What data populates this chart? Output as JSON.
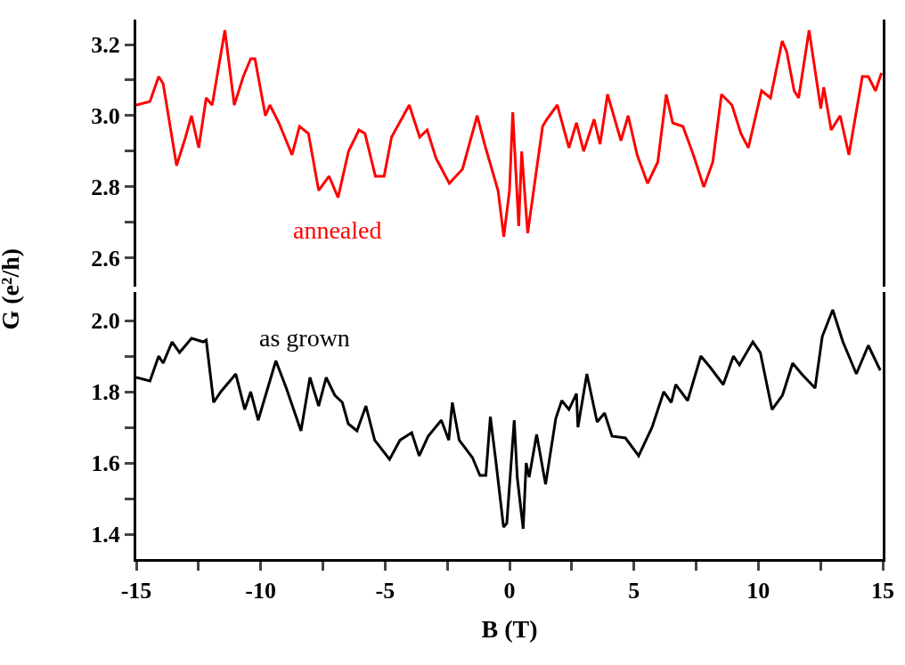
{
  "chart_data": [
    {
      "type": "line",
      "ylabel": "G (e²/h)",
      "xlim": [
        -15,
        15
      ],
      "ylim": [
        2.52,
        3.27
      ],
      "tick_labels": "y",
      "marker": "none",
      "line_style": "solid",
      "yticks": [
        {
          "value": 2.6,
          "label": "2.6"
        },
        {
          "value": 2.7,
          "label": null
        },
        {
          "value": 2.8,
          "label": "2.8"
        },
        {
          "value": 2.9,
          "label": null
        },
        {
          "value": 3.0,
          "label": "3.0"
        },
        {
          "value": 3.1,
          "label": null
        },
        {
          "value": 3.2,
          "label": "3.2"
        }
      ],
      "series": [
        {
          "name": "annealed",
          "color": "#ff0000",
          "x": [
            -15,
            -14.45,
            -14.1,
            -13.92,
            -13.38,
            -13.02,
            -12.78,
            -12.49,
            -12.19,
            -11.95,
            -11.44,
            -11.06,
            -10.7,
            -10.4,
            -10.23,
            -9.81,
            -9.63,
            -9.27,
            -8.74,
            -8.44,
            -8.08,
            -7.67,
            -7.25,
            -6.89,
            -6.47,
            -6.05,
            -5.81,
            -5.39,
            -5.04,
            -4.74,
            -4.03,
            -3.61,
            -3.31,
            -2.95,
            -2.42,
            -1.89,
            -1.3,
            -1.0,
            -0.46,
            -0.23,
            0.0,
            0.13,
            0.37,
            0.49,
            0.73,
            1.09,
            1.33,
            1.5,
            1.92,
            2.39,
            2.69,
            2.98,
            3.4,
            3.64,
            3.94,
            4.48,
            4.77,
            5.13,
            5.55,
            5.96,
            6.3,
            6.56,
            6.97,
            7.39,
            7.81,
            8.17,
            8.52,
            8.94,
            9.3,
            9.6,
            10.13,
            10.49,
            10.96,
            11.14,
            11.44,
            11.62,
            12.04,
            12.51,
            12.63,
            12.93,
            13.29,
            13.64,
            14.18,
            14.42,
            14.71,
            14.95
          ],
          "values": [
            3.03,
            3.04,
            3.11,
            3.09,
            2.86,
            2.94,
            3.0,
            2.91,
            3.05,
            3.03,
            3.24,
            3.03,
            3.11,
            3.16,
            3.16,
            3.0,
            3.03,
            2.98,
            2.89,
            2.97,
            2.95,
            2.79,
            2.83,
            2.77,
            2.9,
            2.96,
            2.95,
            2.83,
            2.83,
            2.94,
            3.03,
            2.94,
            2.96,
            2.88,
            2.81,
            2.85,
            3.0,
            2.92,
            2.79,
            2.66,
            2.79,
            3.01,
            2.69,
            2.9,
            2.67,
            2.85,
            2.97,
            2.99,
            3.03,
            2.91,
            2.98,
            2.9,
            2.99,
            2.92,
            3.06,
            2.93,
            3.0,
            2.89,
            2.81,
            2.87,
            3.06,
            2.98,
            2.97,
            2.89,
            2.8,
            2.87,
            3.06,
            3.03,
            2.95,
            2.91,
            3.07,
            3.05,
            3.21,
            3.18,
            3.07,
            3.05,
            3.24,
            3.02,
            3.08,
            2.96,
            3.0,
            2.89,
            3.11,
            3.11,
            3.07,
            3.12
          ]
        }
      ]
    },
    {
      "type": "line",
      "xlabel": "B (T)",
      "xlim": [
        -15,
        15
      ],
      "ylim": [
        1.33,
        2.08
      ],
      "marker": "none",
      "line_style": "solid",
      "xticks": [
        -15,
        {
          "value": -12.5,
          "label": null
        },
        -10,
        {
          "value": -7.5,
          "label": null
        },
        -5,
        {
          "value": -2.5,
          "label": null
        },
        0,
        {
          "value": 2.5,
          "label": null
        },
        5,
        {
          "value": 7.5,
          "label": null
        },
        10,
        {
          "value": 12.5,
          "label": null
        },
        15
      ],
      "yticks": [
        {
          "value": 1.4,
          "label": "1.4"
        },
        {
          "value": 1.5,
          "label": null
        },
        {
          "value": 1.6,
          "label": "1.6"
        },
        {
          "value": 1.7,
          "label": null
        },
        {
          "value": 1.8,
          "label": "1.8"
        },
        {
          "value": 1.9,
          "label": null
        },
        {
          "value": 2.0,
          "label": "2.0"
        }
      ],
      "series": [
        {
          "name": "as grown",
          "color": "#000000",
          "x": [
            -15,
            -14.45,
            -14.1,
            -13.92,
            -13.56,
            -13.26,
            -12.78,
            -12.31,
            -12.19,
            -11.89,
            -11.6,
            -11.0,
            -10.64,
            -10.4,
            -10.1,
            -9.39,
            -8.97,
            -8.38,
            -8.02,
            -7.67,
            -7.37,
            -7.02,
            -6.72,
            -6.48,
            -6.13,
            -5.77,
            -5.42,
            -4.82,
            -4.4,
            -3.93,
            -3.63,
            -3.27,
            -2.74,
            -2.44,
            -2.3,
            -2.02,
            -1.49,
            -1.19,
            -0.95,
            -0.77,
            -0.54,
            -0.24,
            -0.11,
            0.19,
            0.31,
            0.55,
            0.67,
            0.79,
            1.09,
            1.45,
            1.86,
            2.1,
            2.39,
            2.69,
            2.75,
            3.11,
            3.52,
            3.82,
            4.12,
            4.66,
            5.19,
            5.73,
            6.2,
            6.5,
            6.68,
            7.16,
            7.69,
            8.05,
            8.59,
            9.0,
            9.24,
            9.78,
            10.08,
            10.55,
            10.97,
            11.38,
            11.74,
            12.28,
            12.57,
            12.99,
            13.4,
            13.58,
            13.94,
            14.42,
            14.9
          ],
          "values": [
            1.84,
            1.83,
            1.9,
            1.88,
            1.94,
            1.91,
            1.95,
            1.94,
            1.945,
            1.77,
            1.8,
            1.85,
            1.75,
            1.8,
            1.72,
            1.887,
            1.81,
            1.69,
            1.84,
            1.76,
            1.84,
            1.79,
            1.77,
            1.71,
            1.69,
            1.76,
            1.664,
            1.61,
            1.664,
            1.685,
            1.62,
            1.675,
            1.72,
            1.664,
            1.77,
            1.664,
            1.615,
            1.565,
            1.565,
            1.73,
            1.6,
            1.42,
            1.43,
            1.72,
            1.56,
            1.415,
            1.6,
            1.56,
            1.68,
            1.54,
            1.725,
            1.775,
            1.75,
            1.795,
            1.7,
            1.85,
            1.715,
            1.74,
            1.675,
            1.67,
            1.62,
            1.7,
            1.8,
            1.77,
            1.82,
            1.775,
            1.9,
            1.87,
            1.82,
            1.9,
            1.875,
            1.94,
            1.91,
            1.75,
            1.79,
            1.88,
            1.85,
            1.81,
            1.955,
            2.03,
            1.94,
            1.91,
            1.85,
            1.93,
            1.86
          ]
        }
      ]
    }
  ]
}
